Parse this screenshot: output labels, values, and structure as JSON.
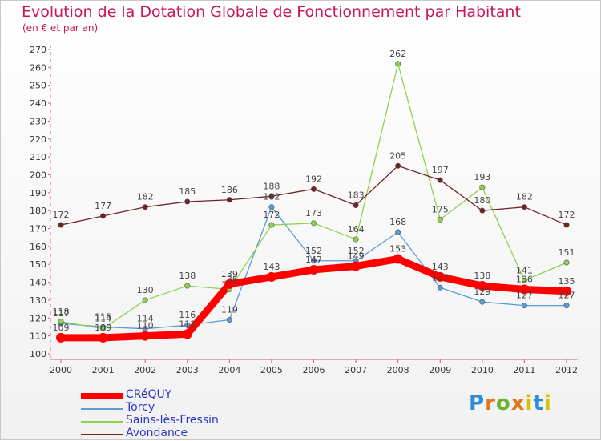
{
  "header": {
    "title": "Evolution de la Dotation Globale de Fonctionnement par Habitant",
    "subtitle": "(en € et par an)"
  },
  "logo": {
    "text": "Proxiti"
  },
  "chart_data": {
    "type": "line",
    "title": "Evolution de la Dotation Globale de Fonctionnement par Habitant",
    "subtitle": "(en € et par an)",
    "xlabel": "",
    "ylabel": "",
    "x": [
      "2000",
      "2001",
      "2002",
      "2003",
      "2004",
      "2005",
      "2006",
      "2007",
      "2008",
      "2009",
      "2010",
      "2011",
      "2012"
    ],
    "ylim": [
      100,
      270
    ],
    "yticks": [
      100,
      110,
      120,
      130,
      140,
      150,
      160,
      170,
      180,
      190,
      200,
      210,
      220,
      230,
      240,
      250,
      260,
      270
    ],
    "grid": false,
    "legend_position": "bottom-left",
    "series": [
      {
        "name": "CRéQUY",
        "color": "#ff0000",
        "values": [
          109,
          109,
          110,
          111,
          139,
          143,
          147,
          149,
          153,
          143,
          138,
          136,
          135
        ]
      },
      {
        "name": "Torcy",
        "color": "#5b9bd5",
        "values": [
          117,
          115,
          114,
          116,
          119,
          182,
          152,
          152,
          168,
          137,
          129,
          127,
          127
        ]
      },
      {
        "name": "Sains-lès-Fressin",
        "color": "#8fd14f",
        "values": [
          118,
          114,
          130,
          138,
          136,
          172,
          173,
          164,
          262,
          175,
          193,
          141,
          151
        ]
      },
      {
        "name": "Avondance",
        "color": "#722222",
        "values": [
          172,
          177,
          182,
          185,
          186,
          188,
          192,
          183,
          205,
          197,
          180,
          182,
          172
        ]
      }
    ]
  }
}
